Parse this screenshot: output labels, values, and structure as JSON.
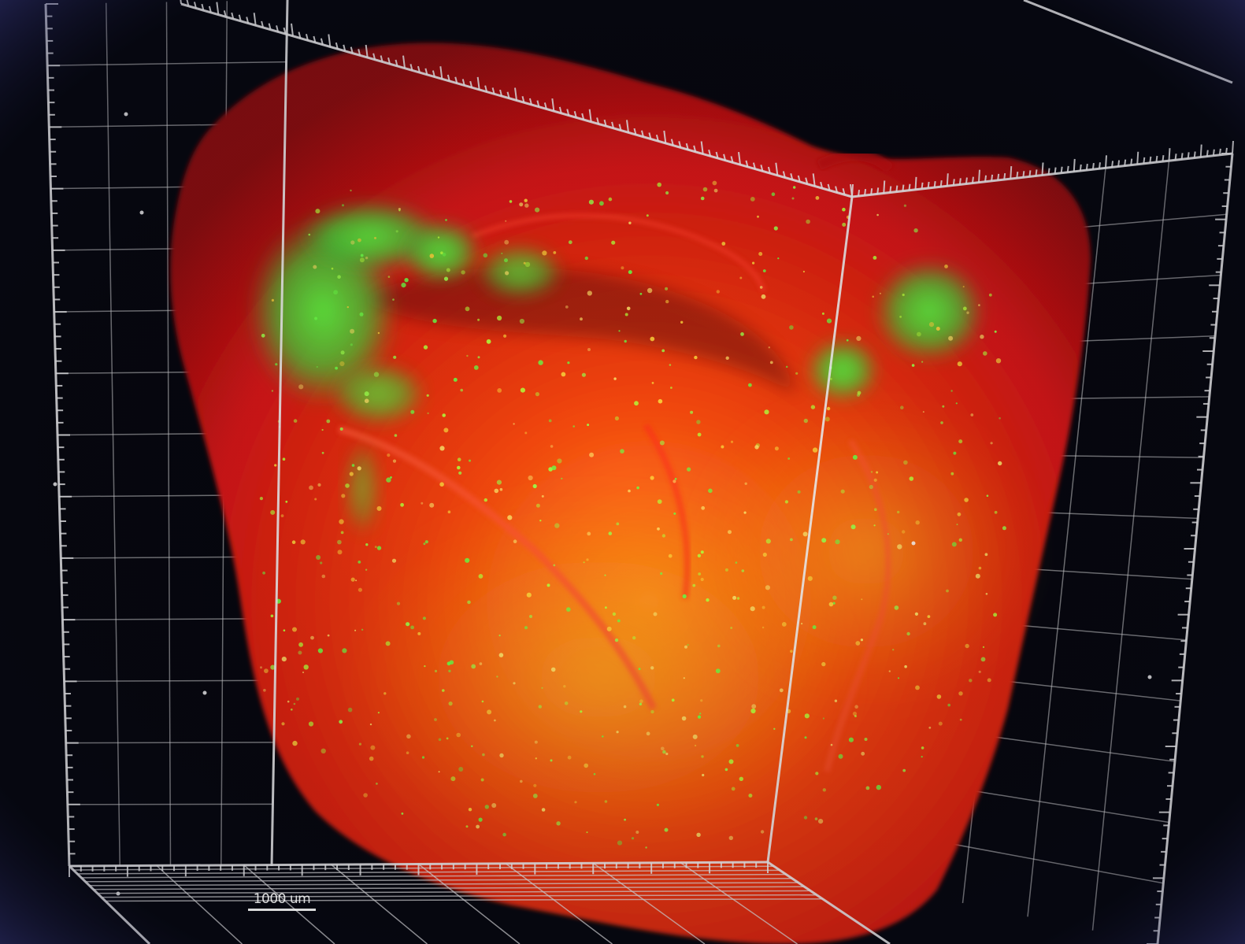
{
  "scale_bar": {
    "label": "1000 um"
  },
  "colors": {
    "background": "#05060c",
    "tissue": "#e01b12",
    "signal": "#3df03a",
    "grid": "#e8e8e8",
    "vignette": "#3c3d8c"
  }
}
